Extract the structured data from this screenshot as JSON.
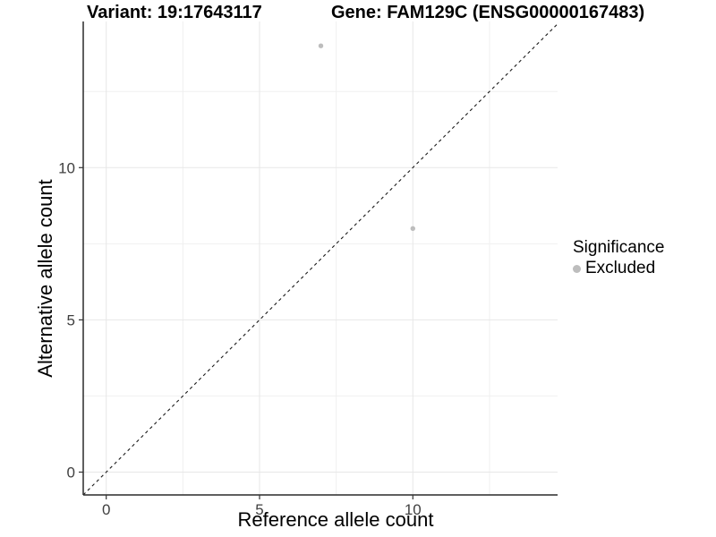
{
  "titles": {
    "variant": "Variant: 19:17643117",
    "gene": "Gene: FAM129C (ENSG00000167483)"
  },
  "legend": {
    "title": "Significance",
    "entries": [
      {
        "label": "Excluded",
        "color": "#bdbdbd"
      }
    ]
  },
  "colors": {
    "background": "#ffffff",
    "axis_line": "#2a2a2a",
    "tick_mark": "#333333",
    "tick_label": "#404040",
    "grid_major": "#e7e7e7",
    "grid_minor": "#f0f0f0",
    "identity_line": "#1a1a1a",
    "point": "#bdbdbd"
  },
  "chart_data": {
    "type": "scatter",
    "title_left": "Variant: 19:17643117",
    "title_right": "Gene: FAM129C (ENSG00000167483)",
    "xlabel": "Reference allele count",
    "ylabel": "Alternative allele count",
    "xlim": [
      -0.75,
      14.72
    ],
    "ylim": [
      -0.75,
      14.8
    ],
    "x_ticks": [
      0,
      5,
      10
    ],
    "y_ticks": [
      0,
      5,
      10
    ],
    "x_minor_ticks": [
      2.5,
      7.5,
      12.5
    ],
    "y_minor_ticks": [
      2.5,
      7.5,
      12.5
    ],
    "grid": true,
    "identity_line": {
      "style": "dashed",
      "slope": 1,
      "intercept": 0
    },
    "legend_position": "right",
    "series": [
      {
        "name": "Excluded",
        "color": "#bdbdbd",
        "points": [
          {
            "x": 7,
            "y": 14
          },
          {
            "x": 10,
            "y": 8
          }
        ]
      }
    ]
  }
}
